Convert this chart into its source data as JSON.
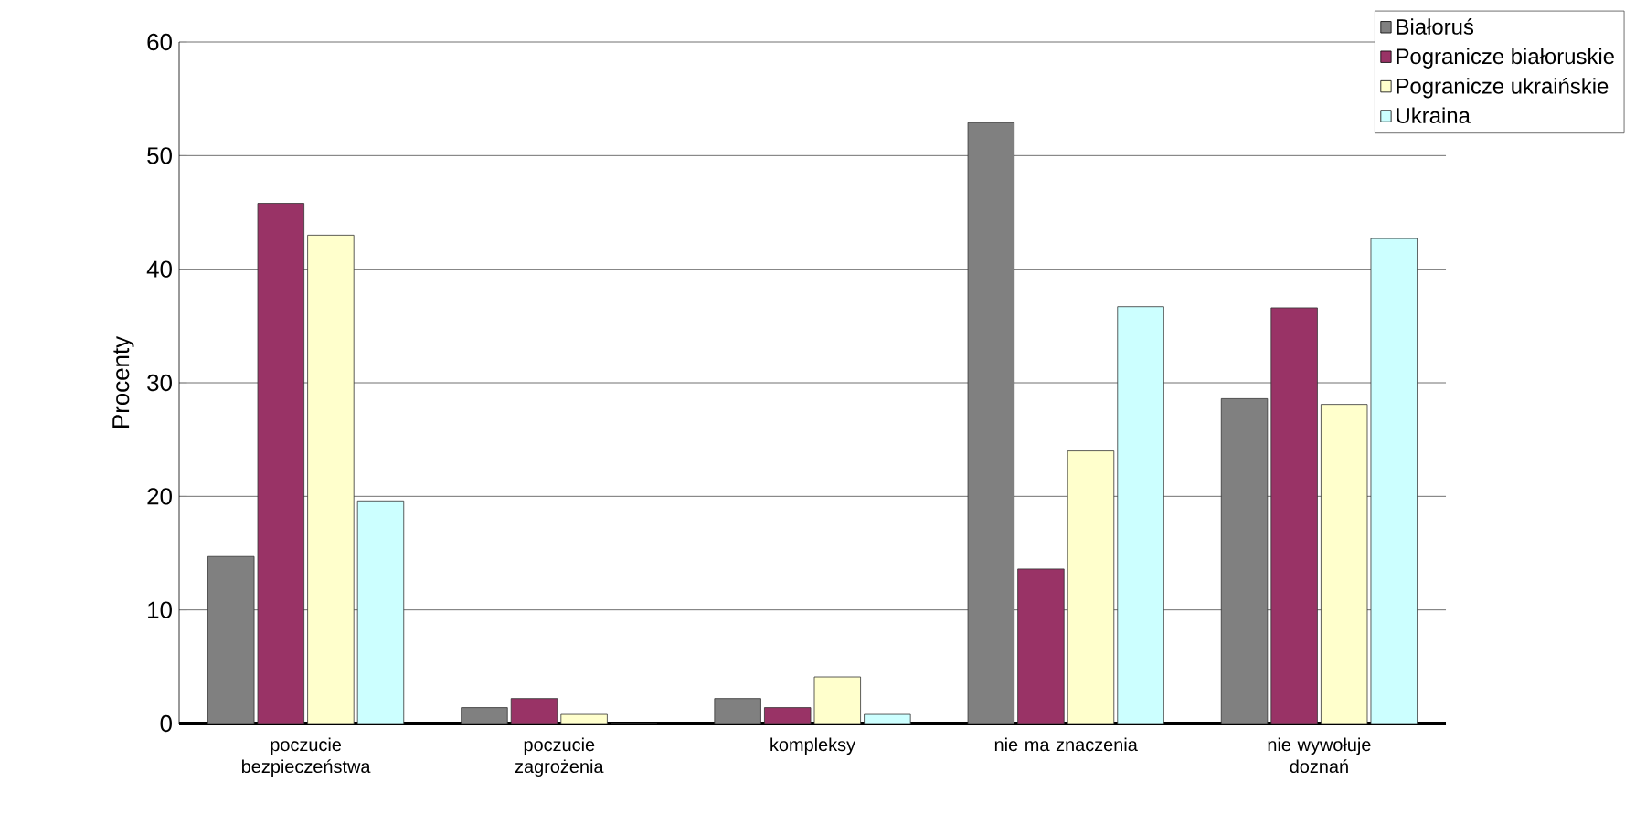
{
  "chart_data": {
    "type": "bar",
    "ylabel": "Procenty",
    "categories": [
      "poczucie bezpieczeństwa",
      "poczucie zagrożenia",
      "kompleksy",
      "nie ma znaczenia",
      "nie wywołuje doznań"
    ],
    "series": [
      {
        "name": "Białoruś",
        "color": "#808080",
        "values": [
          14.7,
          1.4,
          2.2,
          52.9,
          28.6
        ]
      },
      {
        "name": "Pogranicze białoruskie",
        "color": "#993366",
        "values": [
          45.8,
          2.2,
          1.4,
          13.6,
          36.6
        ]
      },
      {
        "name": "Pogranicze ukraińskie",
        "color": "#ffffcc",
        "values": [
          43.0,
          0.8,
          4.1,
          24.0,
          28.1
        ]
      },
      {
        "name": "Ukraina",
        "color": "#ccffff",
        "values": [
          19.6,
          0,
          0.8,
          36.7,
          42.7
        ]
      }
    ],
    "ylim": [
      0,
      60
    ],
    "yticks": [
      0,
      10,
      20,
      30,
      40,
      50,
      60
    ],
    "grid": "y",
    "legend": "top right"
  }
}
